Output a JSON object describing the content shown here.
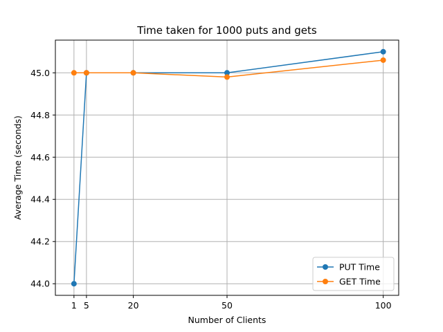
{
  "chart_data": {
    "type": "line",
    "title": "Time taken for 1000 puts and gets",
    "xlabel": "Number of Clients",
    "ylabel": "Average Time (seconds)",
    "x": [
      1,
      5,
      20,
      50,
      100
    ],
    "x_ticks": [
      1,
      5,
      20,
      50,
      100
    ],
    "y_ticks": [
      44.0,
      44.2,
      44.4,
      44.6,
      44.8,
      45.0
    ],
    "y_tick_labels": [
      "44.0",
      "44.2",
      "44.4",
      "44.6",
      "44.8",
      "45.0"
    ],
    "xlim": [
      -4.95,
      104.95
    ],
    "ylim": [
      43.945,
      45.155
    ],
    "grid": true,
    "legend_position": "lower-right",
    "series": [
      {
        "name": "PUT Time",
        "color": "#1f77b4",
        "values": [
          44.0,
          45.0,
          45.0,
          45.0,
          45.1
        ]
      },
      {
        "name": "GET Time",
        "color": "#ff7f0e",
        "values": [
          45.0,
          45.0,
          45.0,
          44.98,
          45.06
        ]
      }
    ]
  }
}
